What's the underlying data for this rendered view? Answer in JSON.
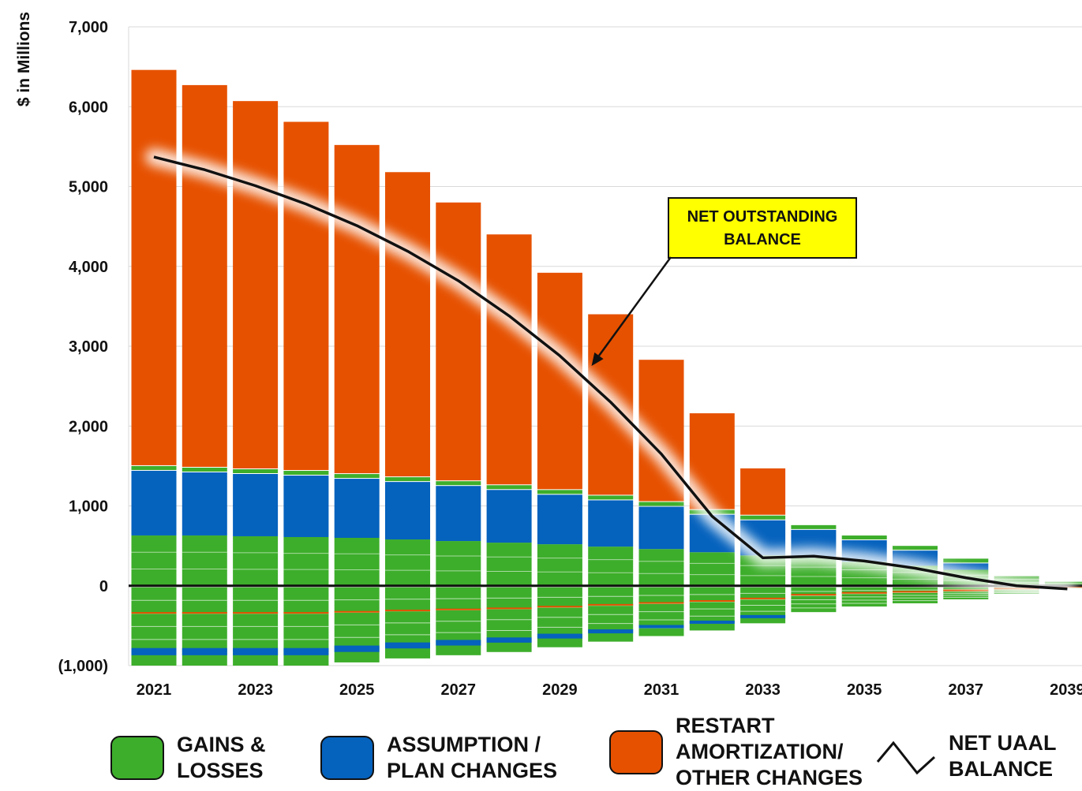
{
  "chart_data": {
    "type": "bar",
    "stacked": true,
    "ylabel": "$ in Millions",
    "ylim": [
      -1000,
      7000
    ],
    "y_ticks": [
      -1000,
      0,
      1000,
      2000,
      3000,
      4000,
      5000,
      6000,
      7000
    ],
    "y_tick_labels": [
      "(1,000)",
      "0",
      "1,000",
      "2,000",
      "3,000",
      "4,000",
      "5,000",
      "6,000",
      "7,000"
    ],
    "x": [
      2021,
      2022,
      2023,
      2024,
      2025,
      2026,
      2027,
      2028,
      2029,
      2030,
      2031,
      2032,
      2033,
      2034,
      2035,
      2036,
      2037,
      2038,
      2039
    ],
    "x_tick_labels": [
      "2021",
      "2023",
      "2025",
      "2027",
      "2029",
      "2031",
      "2033",
      "2035",
      "2037",
      "2039"
    ],
    "grid": true,
    "series": [
      {
        "name": "GAINS & LOSSES",
        "color": "#3DAE2B",
        "positive": [
          630,
          630,
          620,
          610,
          600,
          580,
          560,
          540,
          520,
          490,
          460,
          420,
          380,
          350,
          300,
          250,
          200,
          120,
          50
        ],
        "negative": [
          -1000,
          -1000,
          -1000,
          -1000,
          -960,
          -910,
          -870,
          -830,
          -770,
          -700,
          -630,
          -560,
          -470,
          -330,
          -260,
          -220,
          -170,
          -100,
          -40
        ]
      },
      {
        "name": "ASSUMPTION / PLAN CHANGES",
        "color": "#0562BD",
        "positive": [
          810,
          790,
          780,
          770,
          740,
          720,
          690,
          660,
          620,
          580,
          530,
          470,
          440,
          350,
          270,
          190,
          80,
          0,
          0
        ],
        "negative": [
          -90,
          -90,
          -90,
          -90,
          -80,
          -75,
          -70,
          -65,
          -60,
          -50,
          -40,
          -30,
          -10,
          0,
          0,
          0,
          0,
          0,
          0
        ]
      },
      {
        "name": "RESTART AMORTIZATION/ OTHER CHANGES",
        "color": "#E65100",
        "positive": [
          5020,
          4850,
          4670,
          4430,
          4180,
          3880,
          3550,
          3200,
          2780,
          2330,
          1840,
          1270,
          650,
          0,
          0,
          0,
          0,
          0,
          0
        ]
      },
      {
        "name": "NET UAAL BALANCE",
        "type": "line",
        "color": "#111111",
        "values": [
          5370,
          5210,
          5010,
          4780,
          4510,
          4190,
          3820,
          3380,
          2880,
          2300,
          1650,
          870,
          350,
          370,
          310,
          220,
          100,
          0,
          -40
        ]
      }
    ],
    "annotations": [
      {
        "text": "NET OUTSTANDING BALANCE",
        "target_x": 2029.5,
        "target_y": 3050
      }
    ]
  },
  "legend": [
    {
      "label": "GAINS &\nLOSSES",
      "color": "#3DAE2B",
      "icon": "swatch"
    },
    {
      "label": "ASSUMPTION /\nPLAN CHANGES",
      "color": "#0562BD",
      "icon": "swatch"
    },
    {
      "label": "RESTART\nAMORTIZATION/\nOTHER CHANGES",
      "color": "#E65100",
      "icon": "swatch"
    },
    {
      "label": "NET UAAL\nBALANCE",
      "color": "#111111",
      "icon": "line-zigzag-icon"
    }
  ],
  "callout": {
    "line1": "NET OUTSTANDING",
    "line2": "BALANCE",
    "bg": "#FFFF00"
  }
}
